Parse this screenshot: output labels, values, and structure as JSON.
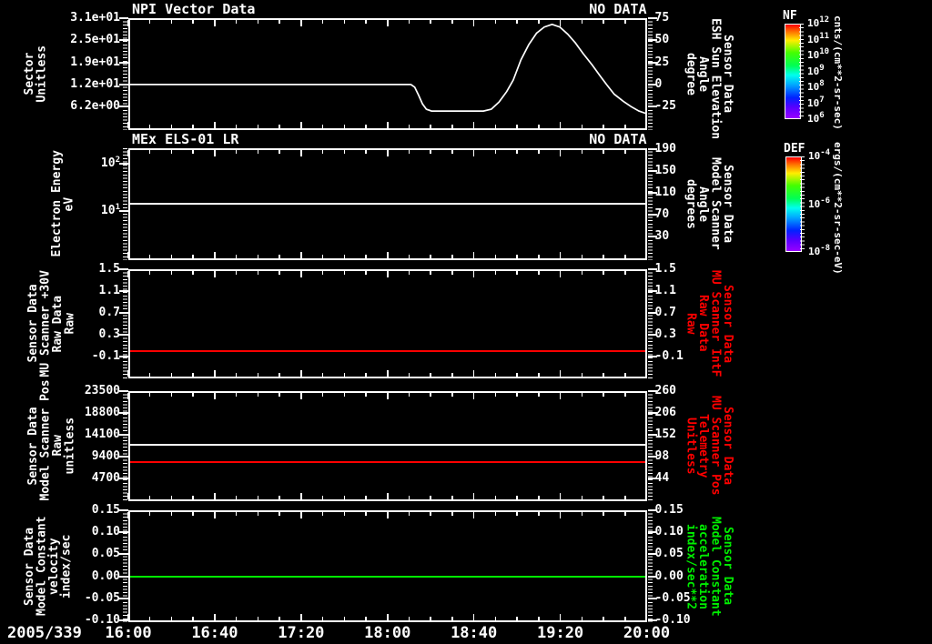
{
  "app": {
    "background": "#000000",
    "accent_red": "#ff0000",
    "accent_green": "#00ee00"
  },
  "figure": {
    "date_label": "2005/339",
    "x_axis_times": [
      "16:00",
      "16:40",
      "17:20",
      "18:00",
      "18:40",
      "19:20",
      "20:00"
    ],
    "panels": [
      {
        "title_left": "NPI Vector Data",
        "title_right": "NO DATA",
        "left_label_lines": [
          "Sector",
          "Unitless"
        ],
        "left_ticks": [
          "3.1e+01",
          "2.5e+01",
          "1.9e+01",
          "1.2e+01",
          "6.2e+00"
        ],
        "right_ticks": [
          "75",
          "50",
          "25",
          "0",
          "-25"
        ],
        "right_label_lines": [
          "Sensor Data",
          "ESH Sun Elevation",
          "Angle",
          "degree"
        ],
        "right_label_color": "#ffffff"
      },
      {
        "title_left": "MEx ELS-01 LR",
        "title_right": "NO DATA",
        "left_label_lines": [
          "Electron Energy",
          "eV"
        ],
        "left_ticks": [
          "10^2",
          "10^1"
        ],
        "right_ticks": [
          "190",
          "150",
          "110",
          "70",
          "30"
        ],
        "right_label_lines": [
          "Sensor Data",
          "Model Scanner",
          "Angle",
          "degrees"
        ],
        "right_label_color": "#ffffff"
      },
      {
        "left_label_lines": [
          "Sensor Data",
          "MU Scanner +30V",
          "Raw Data",
          "Raw"
        ],
        "left_ticks": [
          "1.5",
          "1.1",
          "0.7",
          "0.3",
          "-0.1"
        ],
        "right_ticks": [
          "1.5",
          "1.1",
          "0.7",
          "0.3",
          "-0.1"
        ],
        "right_label_lines": [
          "Sensor Data",
          "MU Scanner IntF",
          "Raw Data",
          "Raw"
        ],
        "right_label_color": "#ff0000"
      },
      {
        "left_label_lines": [
          "Sensor Data",
          "Model Scanner Pos",
          "Raw",
          "unitless"
        ],
        "left_ticks": [
          "23500",
          "18800",
          "14100",
          "9400",
          "4700"
        ],
        "right_ticks": [
          "260",
          "206",
          "152",
          "98",
          "44"
        ],
        "right_label_lines": [
          "Sensor Data",
          "MU Scanner Pos",
          "Telemetry",
          "Unitless"
        ],
        "right_label_color": "#ff0000"
      },
      {
        "left_label_lines": [
          "Sensor Data",
          "Model Constant",
          "velocity",
          "index/sec"
        ],
        "left_ticks": [
          "0.15",
          "0.10",
          "0.05",
          "0.00",
          "-0.05",
          "-0.10"
        ],
        "right_ticks": [
          "0.15",
          "0.10",
          "0.05",
          "0.00",
          "-0.05",
          "-0.10"
        ],
        "right_label_lines": [
          "Sensor Data",
          "Model Constant",
          "acceleration",
          "index/sec**2"
        ],
        "right_label_color": "#00ee00"
      }
    ],
    "colorbars": [
      {
        "title": "NF",
        "ticks": [
          "10^12",
          "10^11",
          "10^10",
          "10^9",
          "10^8",
          "10^7",
          "10^6"
        ],
        "unit": "cnts/(cm**2-sr-sec)"
      },
      {
        "title": "DEF",
        "ticks": [
          "10^-4",
          "10^-6",
          "10^-8"
        ],
        "unit": "ergs/(cm**2-sr-sec-eV)"
      }
    ]
  },
  "chart_data": [
    {
      "type": "line",
      "title": "NPI Vector Data",
      "status": "NO DATA",
      "x_unit": "hour of day 2005/339",
      "xlim": [
        16,
        20
      ],
      "left_axis": {
        "label": "Sector Unitless",
        "ticks": [
          31,
          25,
          19,
          12,
          6.2
        ]
      },
      "right_axis": {
        "label": "Sensor Data ESH Sun Elevation Angle degree",
        "ticks": [
          75,
          50,
          25,
          0,
          -25
        ]
      },
      "series": [
        {
          "name": "ESH Sun Elevation Angle",
          "axis": "right",
          "color": "#ffffff",
          "x": [
            16.0,
            18.18,
            18.21,
            18.24,
            18.27,
            18.3,
            18.34,
            18.5,
            18.65,
            18.74,
            18.8,
            18.86,
            18.92,
            18.97,
            19.03,
            19.09,
            19.15,
            19.21,
            19.27,
            19.33,
            19.39,
            19.45,
            19.51,
            19.58,
            19.64,
            19.69,
            19.75,
            19.82,
            19.88,
            19.94,
            20.0
          ],
          "y": [
            0,
            0,
            -3,
            -12,
            -22,
            -28,
            -30,
            -30,
            -30,
            -30,
            -28,
            -20,
            -8,
            5,
            28,
            45,
            58,
            65,
            68,
            65,
            57,
            47,
            35,
            22,
            10,
            0,
            -11,
            -19,
            -25,
            -30,
            -33
          ]
        }
      ]
    },
    {
      "type": "line",
      "title": "MEx ELS-01 LR",
      "status": "NO DATA",
      "xlim": [
        16,
        20
      ],
      "left_axis": {
        "label": "Electron Energy eV",
        "scale": "log",
        "ticks": [
          100,
          10
        ]
      },
      "right_axis": {
        "label": "Sensor Data Model Scanner Angle degrees",
        "ticks": [
          190,
          150,
          110,
          70,
          30
        ]
      },
      "series": [
        {
          "name": "Model Scanner Angle",
          "axis": "right",
          "color": "#ffffff",
          "constant": 90
        }
      ]
    },
    {
      "type": "line",
      "xlim": [
        16,
        20
      ],
      "left_axis": {
        "label": "Sensor Data MU Scanner +30V Raw Data Raw",
        "ticks": [
          1.5,
          1.1,
          0.7,
          0.3,
          -0.1
        ]
      },
      "right_axis": {
        "label": "Sensor Data MU Scanner IntF Raw Data Raw",
        "ticks": [
          1.5,
          1.1,
          0.7,
          0.3,
          -0.1
        ]
      },
      "series": [
        {
          "name": "MU Scanner IntF Raw Data",
          "axis": "left",
          "color": "#ff0000",
          "constant": 0.0
        }
      ]
    },
    {
      "type": "line",
      "xlim": [
        16,
        20
      ],
      "left_axis": {
        "label": "Sensor Data Model Scanner Pos Raw unitless",
        "ticks": [
          23500,
          18800,
          14100,
          9400,
          4700
        ]
      },
      "right_axis": {
        "label": "Sensor Data MU Scanner Pos Telemetry Unitless",
        "ticks": [
          260,
          206,
          152,
          98,
          44
        ]
      },
      "series": [
        {
          "name": "Model Scanner Pos Raw",
          "axis": "left",
          "color": "#ffffff",
          "constant": 11950
        },
        {
          "name": "MU Scanner Pos Telemetry",
          "axis": "left",
          "color": "#ff0000",
          "constant": 8230
        }
      ]
    },
    {
      "type": "line",
      "xlim": [
        16,
        20
      ],
      "left_axis": {
        "label": "Sensor Data Model Constant velocity index/sec",
        "ticks": [
          0.15,
          0.1,
          0.05,
          0.0,
          -0.05,
          -0.1
        ]
      },
      "right_axis": {
        "label": "Sensor Data Model Constant acceleration index/sec**2",
        "ticks": [
          0.15,
          0.1,
          0.05,
          0.0,
          -0.05,
          -0.1
        ]
      },
      "series": [
        {
          "name": "Model Constant acceleration",
          "axis": "left",
          "color": "#00ee00",
          "constant": 0.0
        }
      ]
    }
  ]
}
